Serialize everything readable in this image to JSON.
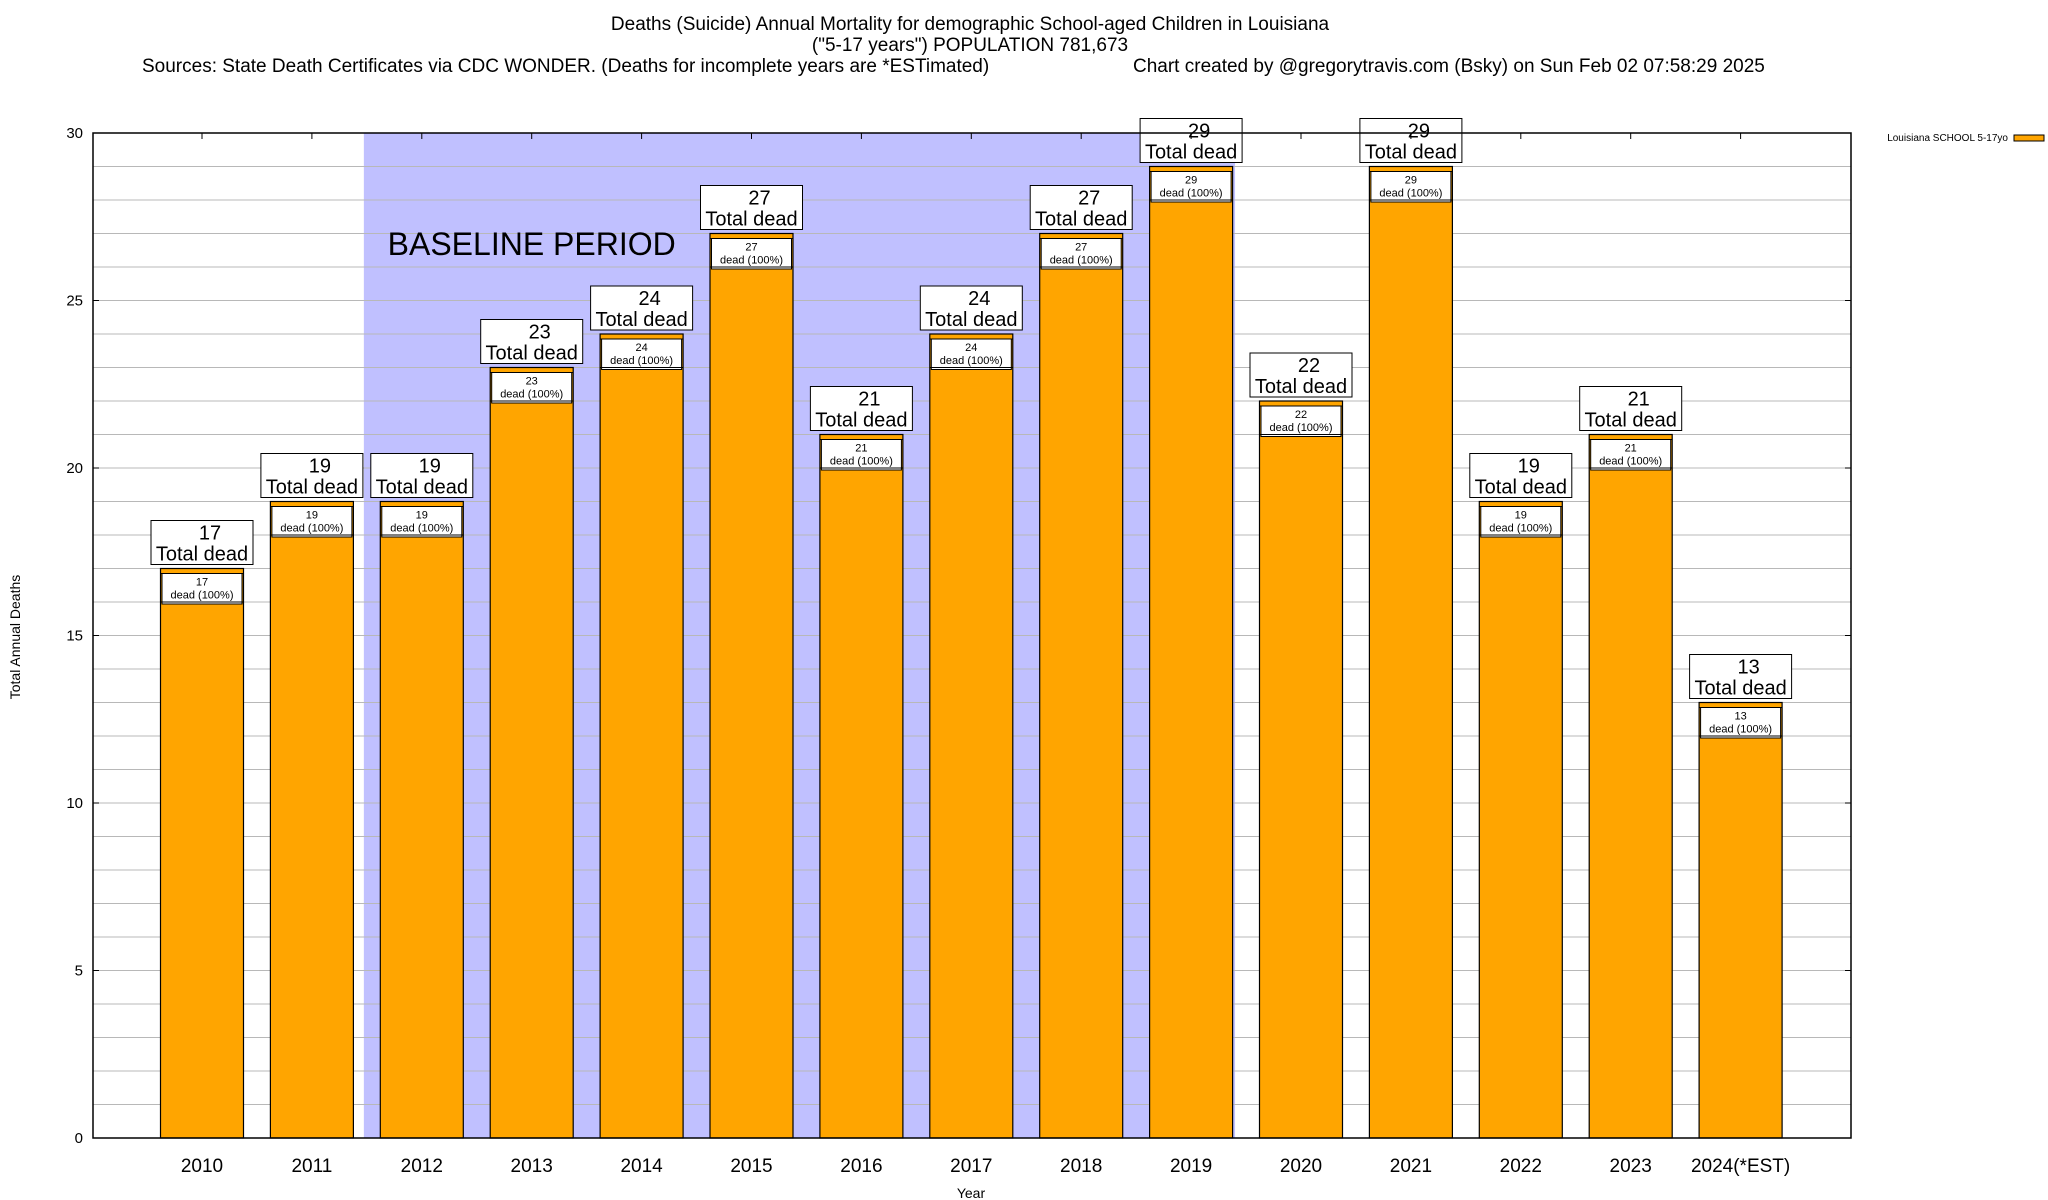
{
  "header": {
    "title_line1": "Deaths (Suicide) Annual Mortality for demographic School-aged Children in Louisiana",
    "title_line2": "(\"5-17 years\") POPULATION 781,673",
    "sources": "Sources: State Death Certificates via CDC WONDER. (Deaths for incomplete years are *ESTimated)",
    "credit": "Chart created by @gregorytravis.com (Bsky) on Sun Feb 02 07:58:29 2025"
  },
  "chart_data": {
    "type": "bar",
    "xlabel": "Year",
    "ylabel": "Total Annual Deaths",
    "ylim": [
      0,
      30
    ],
    "yticks": [
      0,
      5,
      10,
      15,
      20,
      25,
      30
    ],
    "grid": true,
    "legend_position": "top-right",
    "categories": [
      "2010",
      "2011",
      "2012",
      "2013",
      "2014",
      "2015",
      "2016",
      "2017",
      "2018",
      "2019",
      "2020",
      "2021",
      "2022",
      "2023",
      "2024(*EST)"
    ],
    "series": [
      {
        "name": "Louisiana SCHOOL 5-17yo",
        "color": "#ffa500",
        "values": [
          17,
          19,
          19,
          23,
          24,
          27,
          21,
          24,
          27,
          29,
          22,
          29,
          19,
          21,
          13
        ]
      }
    ],
    "top_label_suffix": "Total dead",
    "inner_label_suffix": "dead (100%)",
    "annotation": {
      "text": "BASELINE PERIOD",
      "from": "2012",
      "to": "2019",
      "color": "#c0c0ff"
    }
  }
}
